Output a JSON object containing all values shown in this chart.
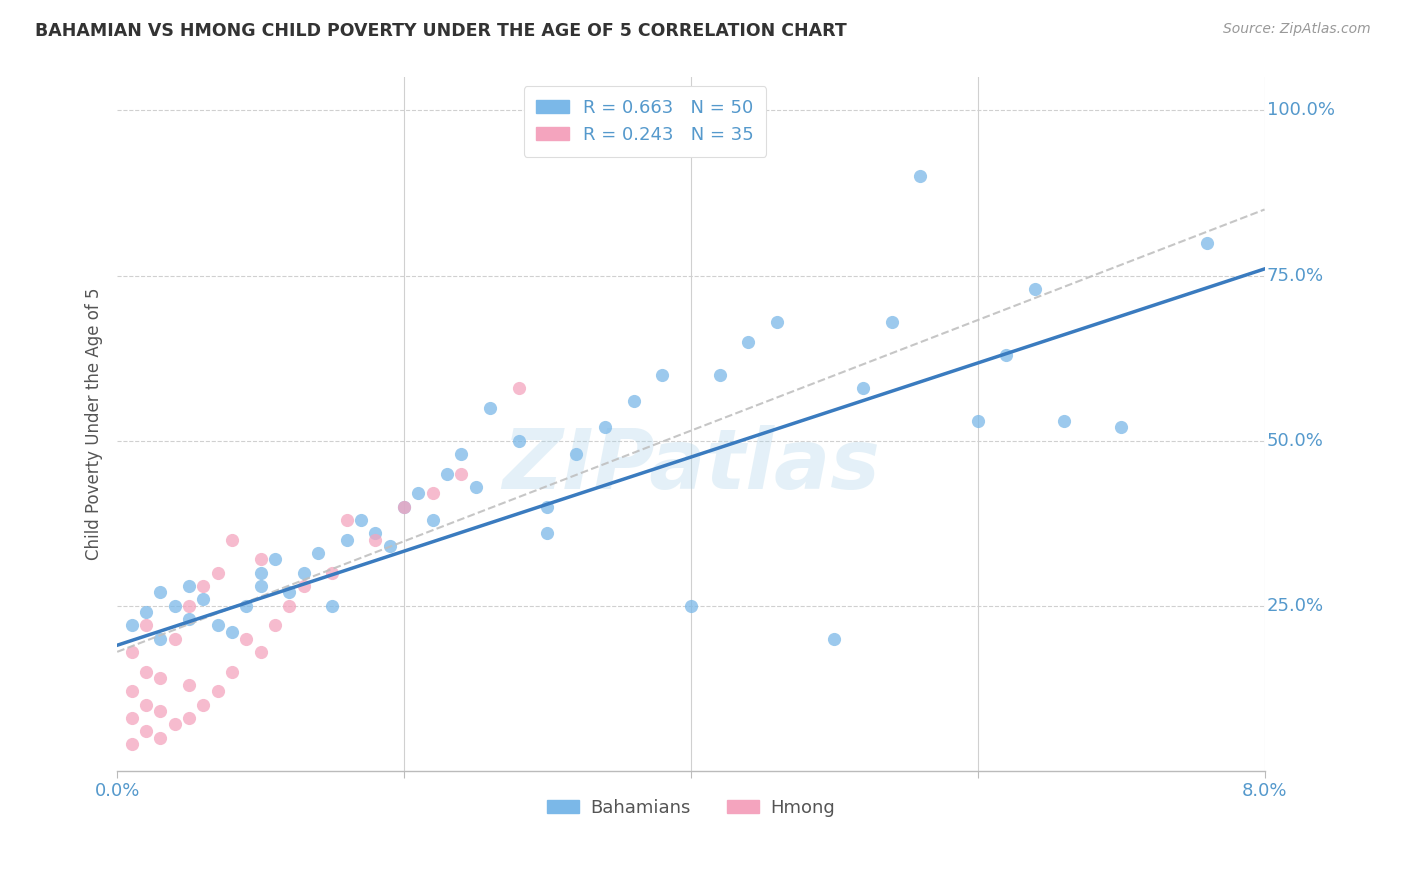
{
  "title": "BAHAMIAN VS HMONG CHILD POVERTY UNDER THE AGE OF 5 CORRELATION CHART",
  "source": "Source: ZipAtlas.com",
  "ylabel": "Child Poverty Under the Age of 5",
  "xlim": [
    0.0,
    0.08
  ],
  "ylim": [
    0.0,
    1.05
  ],
  "watermark": "ZIPatlas",
  "bahamian_R": 0.663,
  "bahamian_N": 50,
  "hmong_R": 0.243,
  "hmong_N": 35,
  "bahamian_color": "#7bb8e8",
  "hmong_color": "#f4a4be",
  "bahamian_line_color": "#3a7bbf",
  "hmong_line_color": "#c0c0c0",
  "grid_color": "#d0d0d0",
  "axis_label_color": "#5599cc",
  "right_yticks": [
    0.25,
    0.5,
    0.75,
    1.0
  ],
  "right_ytick_labels": [
    "25.0%",
    "50.0%",
    "75.0%",
    "100.0%"
  ],
  "bahamian_x": [
    0.001,
    0.002,
    0.003,
    0.003,
    0.004,
    0.005,
    0.005,
    0.006,
    0.007,
    0.008,
    0.009,
    0.01,
    0.01,
    0.011,
    0.012,
    0.013,
    0.014,
    0.015,
    0.016,
    0.017,
    0.018,
    0.019,
    0.02,
    0.021,
    0.022,
    0.023,
    0.024,
    0.025,
    0.026,
    0.028,
    0.03,
    0.03,
    0.032,
    0.034,
    0.036,
    0.038,
    0.04,
    0.042,
    0.044,
    0.046,
    0.05,
    0.052,
    0.054,
    0.056,
    0.06,
    0.062,
    0.064,
    0.066,
    0.07,
    0.076
  ],
  "bahamian_y": [
    0.22,
    0.24,
    0.2,
    0.27,
    0.25,
    0.23,
    0.28,
    0.26,
    0.22,
    0.21,
    0.25,
    0.28,
    0.3,
    0.32,
    0.27,
    0.3,
    0.33,
    0.25,
    0.35,
    0.38,
    0.36,
    0.34,
    0.4,
    0.42,
    0.38,
    0.45,
    0.48,
    0.43,
    0.55,
    0.5,
    0.36,
    0.4,
    0.48,
    0.52,
    0.56,
    0.6,
    0.25,
    0.6,
    0.65,
    0.68,
    0.2,
    0.58,
    0.68,
    0.9,
    0.53,
    0.63,
    0.73,
    0.53,
    0.52,
    0.8
  ],
  "hmong_x": [
    0.001,
    0.001,
    0.001,
    0.001,
    0.002,
    0.002,
    0.002,
    0.002,
    0.003,
    0.003,
    0.003,
    0.004,
    0.004,
    0.005,
    0.005,
    0.005,
    0.006,
    0.006,
    0.007,
    0.007,
    0.008,
    0.008,
    0.009,
    0.01,
    0.01,
    0.011,
    0.012,
    0.013,
    0.015,
    0.016,
    0.018,
    0.02,
    0.022,
    0.024,
    0.028
  ],
  "hmong_y": [
    0.04,
    0.08,
    0.12,
    0.18,
    0.06,
    0.1,
    0.15,
    0.22,
    0.05,
    0.09,
    0.14,
    0.07,
    0.2,
    0.08,
    0.13,
    0.25,
    0.1,
    0.28,
    0.12,
    0.3,
    0.15,
    0.35,
    0.2,
    0.18,
    0.32,
    0.22,
    0.25,
    0.28,
    0.3,
    0.38,
    0.35,
    0.4,
    0.42,
    0.45,
    0.58
  ]
}
